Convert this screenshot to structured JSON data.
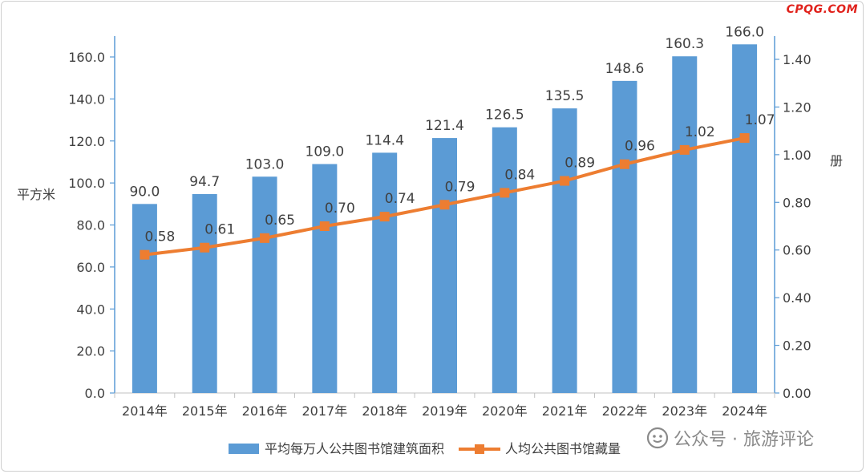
{
  "watermark": "CPQG.COM",
  "footer_brand": "公众号 · 旅游评论",
  "chart_data": {
    "type": "bar",
    "categories": [
      "2014年",
      "2015年",
      "2016年",
      "2017年",
      "2018年",
      "2019年",
      "2020年",
      "2021年",
      "2022年",
      "2023年",
      "2024年"
    ],
    "series": [
      {
        "name": "平均每万人公共图书馆建筑面积",
        "type": "bar",
        "axis": "left",
        "color": "#5b9bd5",
        "values": [
          90.0,
          94.7,
          103.0,
          109.0,
          114.4,
          121.4,
          126.5,
          135.5,
          148.6,
          160.3,
          166.0
        ],
        "labels": [
          "90.0",
          "94.7",
          "103.0",
          "109.0",
          "114.4",
          "121.4",
          "126.5",
          "135.5",
          "148.6",
          "160.3",
          "166.0"
        ]
      },
      {
        "name": "人均公共图书馆藏量",
        "type": "line",
        "axis": "right",
        "color": "#ed7d31",
        "values": [
          0.58,
          0.61,
          0.65,
          0.7,
          0.74,
          0.79,
          0.84,
          0.89,
          0.96,
          1.02,
          1.07
        ],
        "labels": [
          "0.58",
          "0.61",
          "0.65",
          "0.70",
          "0.74",
          "0.79",
          "0.84",
          "0.89",
          "0.96",
          "1.02",
          "1.07"
        ]
      }
    ],
    "ylabel": "平方米",
    "y2label": "册",
    "ylim": [
      0,
      170
    ],
    "y2lim": [
      0,
      1.5
    ],
    "yticks": [
      "0.0",
      "20.0",
      "40.0",
      "60.0",
      "80.0",
      "100.0",
      "120.0",
      "140.0",
      "160.0"
    ],
    "y2ticks": [
      "0.00",
      "0.20",
      "0.40",
      "0.60",
      "0.80",
      "1.00",
      "1.20",
      "1.40"
    ],
    "grid": false,
    "legend_position": "bottom"
  }
}
